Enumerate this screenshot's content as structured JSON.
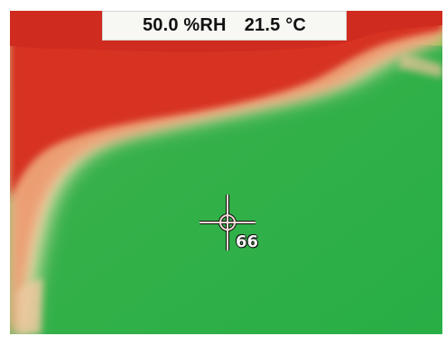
{
  "readout": {
    "humidity": "50.0 %RH",
    "temperature": "21.5 °C"
  },
  "probe": {
    "value": "66",
    "icon": "crosshair-icon"
  },
  "palette": {
    "hot": "#d73020",
    "warm": "#ee8f62",
    "transition": "#f3e2b3",
    "cool": "#34b54a"
  }
}
